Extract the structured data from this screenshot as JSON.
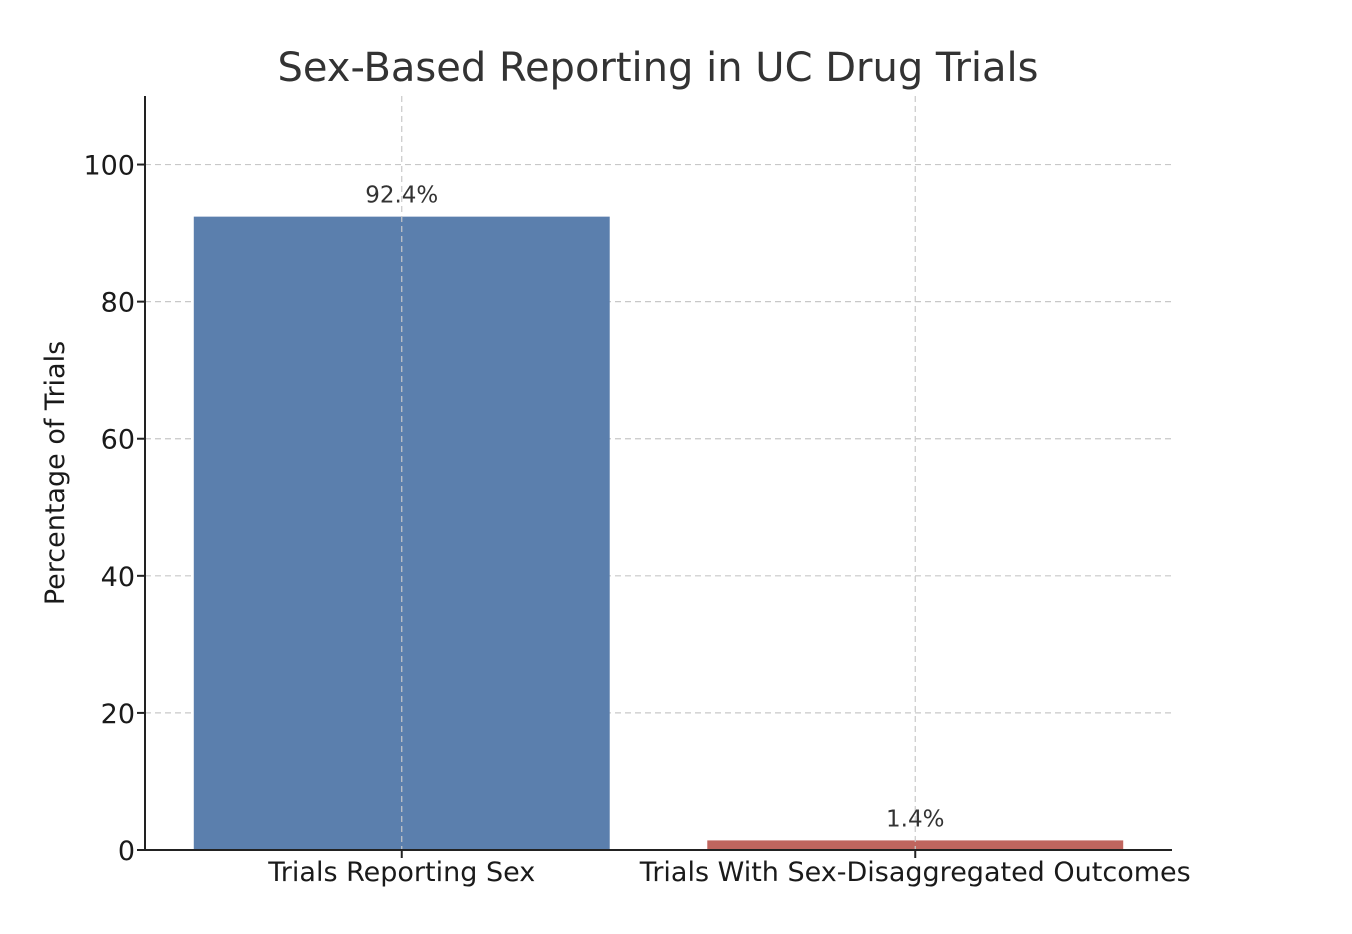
{
  "chart_data": {
    "type": "bar",
    "title": "Sex-Based Reporting in UC Drug Trials",
    "xlabel": "",
    "ylabel": "Percentage of Trials",
    "categories": [
      "Trials Reporting Sex",
      "Trials With Sex-Disaggregated Outcomes"
    ],
    "values": [
      92.4,
      1.4
    ],
    "data_labels": [
      "92.4%",
      "1.4%"
    ],
    "colors": [
      "#5b7fad",
      "#c0655e"
    ],
    "ylim": [
      0,
      110
    ],
    "yticks": [
      0,
      20,
      40,
      60,
      80,
      100
    ],
    "ytick_labels": [
      "0",
      "20",
      "40",
      "60",
      "80",
      "100"
    ],
    "grid": true
  }
}
